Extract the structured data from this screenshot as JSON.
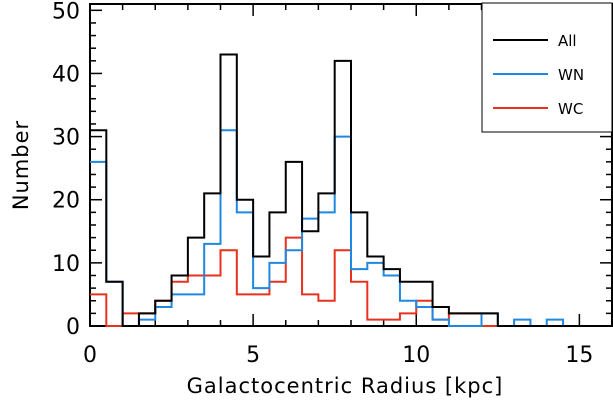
{
  "chart_data": {
    "type": "histogram",
    "title": "",
    "xlabel": "Galactocentric Radius [kpc]",
    "ylabel": "Number",
    "xlim": [
      0,
      16
    ],
    "ylim": [
      0,
      51
    ],
    "x_ticks": [
      0,
      5,
      10,
      15
    ],
    "y_ticks": [
      0,
      10,
      20,
      30,
      40,
      50
    ],
    "bin_width": 0.5,
    "bin_edges_start": 0,
    "legend_position": "top-right",
    "grid": false,
    "series": [
      {
        "name": "All",
        "color": "#000000",
        "values": [
          31,
          7,
          0,
          2,
          4,
          8,
          14,
          21,
          43,
          20,
          11,
          18,
          26,
          15,
          21,
          42,
          18,
          11,
          9,
          7,
          7,
          3,
          2,
          2,
          2,
          0,
          0,
          0,
          0,
          0,
          0,
          0
        ]
      },
      {
        "name": "WN",
        "color": "#1f88e0",
        "values": [
          26,
          7,
          0,
          1,
          3,
          5,
          5,
          13,
          31,
          18,
          6,
          10,
          12,
          17,
          18,
          30,
          9,
          10,
          8,
          4,
          3,
          1,
          0,
          0,
          2,
          0,
          1,
          0,
          1,
          0,
          0,
          0
        ]
      },
      {
        "name": "WC",
        "color": "#e8321e",
        "values": [
          5,
          0,
          2,
          2,
          4,
          7,
          8,
          8,
          12,
          5,
          5,
          7,
          14,
          5,
          4,
          12,
          7,
          1,
          1,
          2,
          4,
          1,
          2,
          2,
          0,
          0,
          0,
          0,
          0,
          0,
          0,
          0
        ]
      }
    ]
  }
}
